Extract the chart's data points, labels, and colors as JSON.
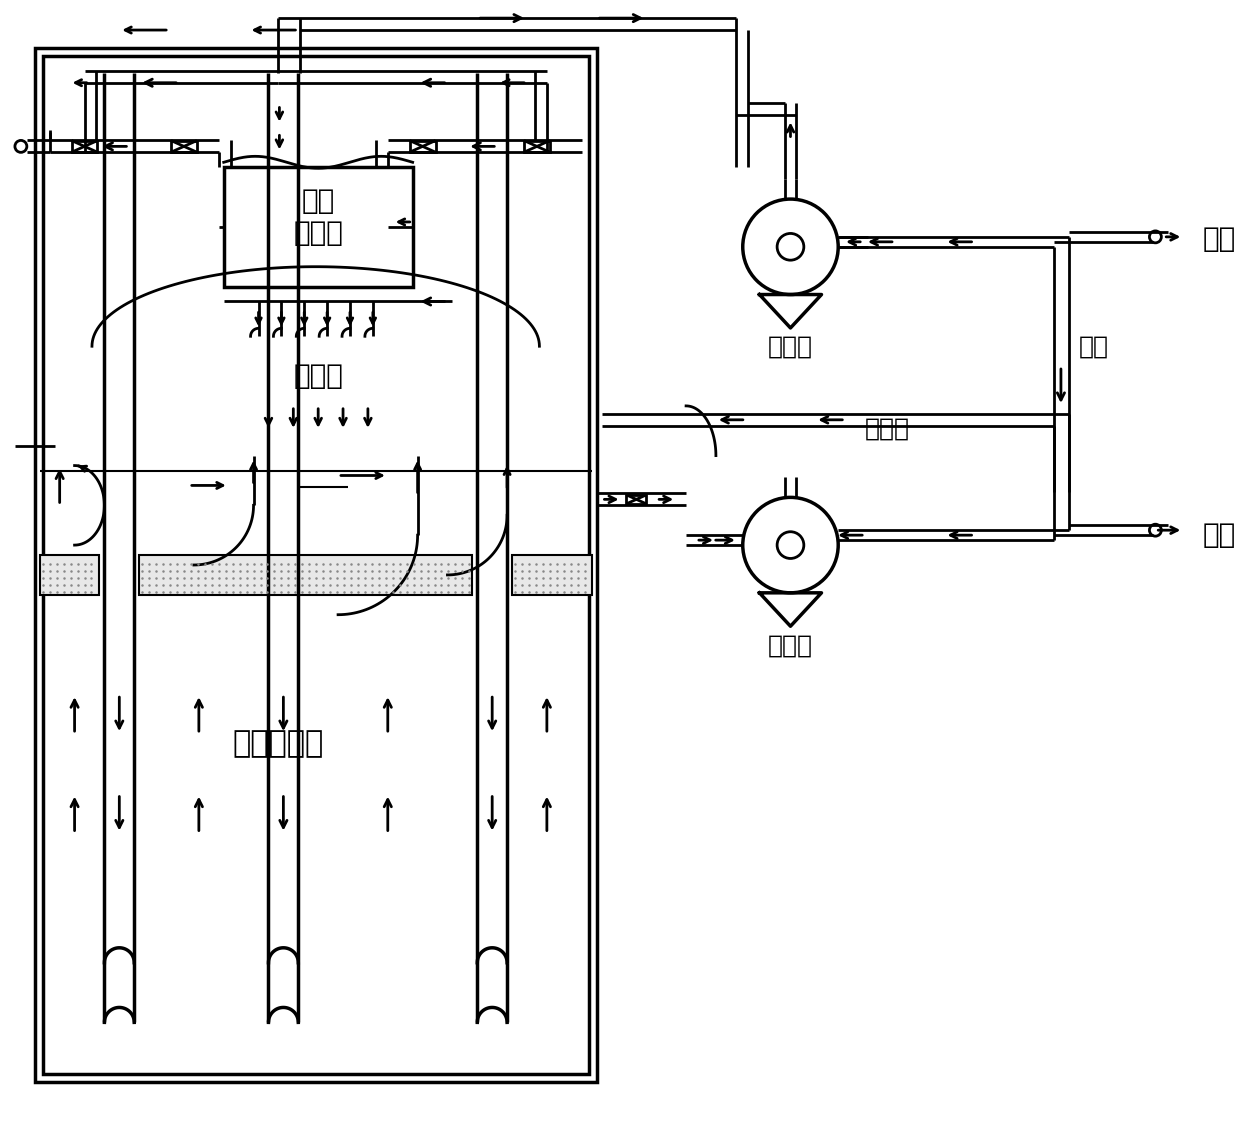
{
  "background_color": "#ffffff",
  "line_color": "#000000",
  "labels": {
    "qi_ye": "气液",
    "fen_li_duan": "分离段",
    "pu_mo_ye_in": "扑沫液",
    "pu_mo_ye_out": "扑沫液",
    "gu_pao": "鼓泡反应段",
    "jin_liao_beng": "进料泵",
    "chu_liao_beng": "出料泵",
    "jin_liao": "进料",
    "fan_liao": "返料",
    "chu_liao": "出料"
  },
  "font_size_large": 20,
  "font_size_med": 18,
  "font_family": "SimHei",
  "lw": 2.0,
  "lw_thick": 2.5,
  "lw_thin": 1.5
}
